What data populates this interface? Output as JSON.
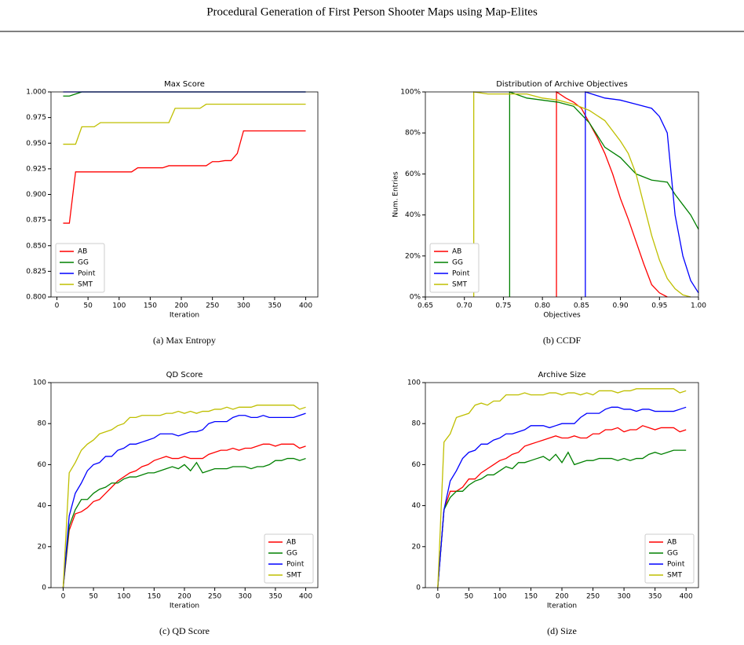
{
  "header": {
    "title": "Procedural Generation of First Person Shooter Maps using Map-Elites"
  },
  "chart_data": [
    {
      "type": "line",
      "title": "Max Score",
      "xlabel": "Iteration",
      "caption": "(a) Max Entropy",
      "legend": "lower left",
      "x": [
        10,
        20,
        30,
        40,
        50,
        60,
        70,
        80,
        90,
        100,
        110,
        120,
        130,
        140,
        150,
        160,
        170,
        180,
        190,
        200,
        210,
        220,
        230,
        240,
        250,
        260,
        270,
        280,
        290,
        300,
        310,
        320,
        330,
        340,
        350,
        360,
        370,
        380,
        390,
        400
      ],
      "xlim": [
        -9.5,
        419.5
      ],
      "xticks": [
        0,
        50,
        100,
        150,
        200,
        250,
        300,
        350,
        400
      ],
      "ylim": [
        0.8,
        1.0
      ],
      "yticks": [
        {
          "value": 0.8,
          "label": "0.800"
        },
        0.825,
        {
          "value": 0.85,
          "label": "0.850"
        },
        0.875,
        {
          "value": 0.9,
          "label": "0.900"
        },
        0.925,
        {
          "value": 0.95,
          "label": "0.950"
        },
        0.975,
        {
          "value": 1,
          "label": "1.000"
        }
      ],
      "series": [
        {
          "name": "AB",
          "color": "#ff0000",
          "values": [
            0.872,
            0.872,
            0.922,
            0.922,
            0.922,
            0.922,
            0.922,
            0.922,
            0.922,
            0.922,
            0.922,
            0.922,
            0.926,
            0.926,
            0.926,
            0.926,
            0.926,
            0.928,
            0.928,
            0.928,
            0.928,
            0.928,
            0.928,
            0.928,
            0.932,
            0.932,
            0.933,
            0.933,
            0.94,
            0.962,
            0.962,
            0.962,
            0.962,
            0.962,
            0.962,
            0.962,
            0.962,
            0.962,
            0.962,
            0.962
          ]
        },
        {
          "name": "GG",
          "color": "#008000",
          "values": [
            0.996,
            0.996,
            0.998,
            1,
            1,
            1,
            1,
            1,
            1,
            1,
            1,
            1,
            1,
            1,
            1,
            1,
            1,
            1,
            1,
            1,
            1,
            1,
            1,
            1,
            1,
            1,
            1,
            1,
            1,
            1,
            1,
            1,
            1,
            1,
            1,
            1,
            1,
            1,
            1,
            1
          ]
        },
        {
          "name": "Point",
          "color": "#0000ff",
          "values": [
            1,
            1,
            1,
            1,
            1,
            1,
            1,
            1,
            1,
            1,
            1,
            1,
            1,
            1,
            1,
            1,
            1,
            1,
            1,
            1,
            1,
            1,
            1,
            1,
            1,
            1,
            1,
            1,
            1,
            1,
            1,
            1,
            1,
            1,
            1,
            1,
            1,
            1,
            1,
            1
          ]
        },
        {
          "name": "SMT",
          "color": "#bfbf00",
          "values": [
            0.949,
            0.949,
            0.949,
            0.966,
            0.966,
            0.966,
            0.97,
            0.97,
            0.97,
            0.97,
            0.97,
            0.97,
            0.97,
            0.97,
            0.97,
            0.97,
            0.97,
            0.97,
            0.984,
            0.984,
            0.984,
            0.984,
            0.984,
            0.988,
            0.988,
            0.988,
            0.988,
            0.988,
            0.988,
            0.988,
            0.988,
            0.988,
            0.988,
            0.988,
            0.988,
            0.988,
            0.988,
            0.988,
            0.988,
            0.988
          ]
        }
      ]
    },
    {
      "type": "line",
      "title": "Distribution of Archive Objectives",
      "xlabel": "Objectives",
      "ylabel": "Num. Entries",
      "caption": "(b) CCDF",
      "legend": "lower left",
      "xlim": [
        0.65,
        1.0
      ],
      "xticks": [
        0.65,
        {
          "value": 0.7,
          "label": "0.70"
        },
        0.75,
        {
          "value": 0.8,
          "label": "0.80"
        },
        0.85,
        {
          "value": 0.9,
          "label": "0.90"
        },
        0.95,
        {
          "value": 1,
          "label": "1.00"
        }
      ],
      "ylim": [
        0,
        100
      ],
      "yticks": [
        {
          "value": 0,
          "label": "0%"
        },
        {
          "value": 20,
          "label": "20%"
        },
        {
          "value": 40,
          "label": "40%"
        },
        {
          "value": 60,
          "label": "60%"
        },
        {
          "value": 80,
          "label": "80%"
        },
        {
          "value": 100,
          "label": "100%"
        }
      ],
      "series": [
        {
          "name": "AB",
          "color": "#ff0000",
          "x": [
            0.818,
            0.818,
            0.83,
            0.84,
            0.85,
            0.86,
            0.87,
            0.88,
            0.89,
            0.9,
            0.91,
            0.92,
            0.93,
            0.94,
            0.95,
            0.96
          ],
          "values": [
            0,
            100,
            97,
            95,
            92,
            85,
            78,
            70,
            60,
            48,
            38,
            27,
            16,
            6,
            2,
            0
          ]
        },
        {
          "name": "GG",
          "color": "#008000",
          "x": [
            0.758,
            0.758,
            0.78,
            0.8,
            0.82,
            0.84,
            0.86,
            0.88,
            0.9,
            0.92,
            0.94,
            0.96,
            0.97,
            0.98,
            0.99,
            1.0
          ],
          "values": [
            0,
            100,
            97,
            96,
            95,
            93,
            85,
            73,
            68,
            60,
            57,
            56,
            50,
            45,
            40,
            33
          ]
        },
        {
          "name": "Point",
          "color": "#0000ff",
          "x": [
            0.855,
            0.855,
            0.88,
            0.9,
            0.92,
            0.94,
            0.95,
            0.96,
            0.965,
            0.97,
            0.975,
            0.98,
            0.99,
            1.0
          ],
          "values": [
            0,
            100,
            97,
            96,
            94,
            92,
            88,
            80,
            60,
            40,
            30,
            20,
            8,
            2
          ]
        },
        {
          "name": "SMT",
          "color": "#bfbf00",
          "x": [
            0.712,
            0.712,
            0.73,
            0.78,
            0.8,
            0.82,
            0.84,
            0.86,
            0.88,
            0.9,
            0.91,
            0.92,
            0.93,
            0.94,
            0.95,
            0.96,
            0.97,
            0.98,
            0.99
          ],
          "values": [
            0,
            100,
            99,
            99,
            97,
            96,
            94,
            91,
            86,
            76,
            70,
            60,
            45,
            30,
            18,
            9,
            4,
            1,
            0
          ]
        }
      ]
    },
    {
      "type": "line",
      "title": "QD Score",
      "xlabel": "Iteration",
      "caption": "(c) QD Score",
      "legend": "lower right",
      "x": [
        0,
        10,
        20,
        30,
        40,
        50,
        60,
        70,
        80,
        90,
        100,
        110,
        120,
        130,
        140,
        150,
        160,
        170,
        180,
        190,
        200,
        210,
        220,
        230,
        240,
        250,
        260,
        270,
        280,
        290,
        300,
        310,
        320,
        330,
        340,
        350,
        360,
        370,
        380,
        390,
        400
      ],
      "xlim": [
        -20,
        420
      ],
      "xticks": [
        0,
        50,
        100,
        150,
        200,
        250,
        300,
        350,
        400
      ],
      "ylim": [
        0,
        100
      ],
      "yticks": [
        0,
        20,
        40,
        60,
        80,
        100
      ],
      "series": [
        {
          "name": "AB",
          "color": "#ff0000",
          "values": [
            0,
            28,
            36,
            37,
            39,
            42,
            43,
            46,
            49,
            52,
            54,
            56,
            57,
            59,
            60,
            62,
            63,
            64,
            63,
            63,
            64,
            63,
            63,
            63,
            65,
            66,
            67,
            67,
            68,
            67,
            68,
            68,
            69,
            70,
            70,
            69,
            70,
            70,
            70,
            68,
            69
          ]
        },
        {
          "name": "GG",
          "color": "#008000",
          "values": [
            0,
            30,
            38,
            43,
            43,
            46,
            48,
            49,
            51,
            51,
            53,
            54,
            54,
            55,
            56,
            56,
            57,
            58,
            59,
            58,
            60,
            57,
            61,
            56,
            57,
            58,
            58,
            58,
            59,
            59,
            59,
            58,
            59,
            59,
            60,
            62,
            62,
            63,
            63,
            62,
            63
          ]
        },
        {
          "name": "Point",
          "color": "#0000ff",
          "values": [
            0,
            35,
            46,
            51,
            57,
            60,
            61,
            64,
            64,
            67,
            68,
            70,
            70,
            71,
            72,
            73,
            75,
            75,
            75,
            74,
            75,
            76,
            76,
            77,
            80,
            81,
            81,
            81,
            83,
            84,
            84,
            83,
            83,
            84,
            83,
            83,
            83,
            83,
            83,
            84,
            85
          ]
        },
        {
          "name": "SMT",
          "color": "#bfbf00",
          "values": [
            0,
            56,
            61,
            67,
            70,
            72,
            75,
            76,
            77,
            79,
            80,
            83,
            83,
            84,
            84,
            84,
            84,
            85,
            85,
            86,
            85,
            86,
            85,
            86,
            86,
            87,
            87,
            88,
            87,
            88,
            88,
            88,
            89,
            89,
            89,
            89,
            89,
            89,
            89,
            87,
            88
          ]
        }
      ]
    },
    {
      "type": "line",
      "title": "Archive Size",
      "xlabel": "Iteration",
      "caption": "(d) Size",
      "legend": "lower right",
      "x": [
        0,
        10,
        20,
        30,
        40,
        50,
        60,
        70,
        80,
        90,
        100,
        110,
        120,
        130,
        140,
        150,
        160,
        170,
        180,
        190,
        200,
        210,
        220,
        230,
        240,
        250,
        260,
        270,
        280,
        290,
        300,
        310,
        320,
        330,
        340,
        350,
        360,
        370,
        380,
        390,
        400
      ],
      "xlim": [
        -20,
        420
      ],
      "xticks": [
        0,
        50,
        100,
        150,
        200,
        250,
        300,
        350,
        400
      ],
      "ylim": [
        0,
        100
      ],
      "yticks": [
        0,
        20,
        40,
        60,
        80,
        100
      ],
      "series": [
        {
          "name": "AB",
          "color": "#ff0000",
          "values": [
            0,
            38,
            47,
            47,
            49,
            53,
            53,
            56,
            58,
            60,
            62,
            63,
            65,
            66,
            69,
            70,
            71,
            72,
            73,
            74,
            73,
            73,
            74,
            73,
            73,
            75,
            75,
            77,
            77,
            78,
            76,
            77,
            77,
            79,
            78,
            77,
            78,
            78,
            78,
            76,
            77
          ]
        },
        {
          "name": "GG",
          "color": "#008000",
          "values": [
            0,
            38,
            44,
            47,
            47,
            50,
            52,
            53,
            55,
            55,
            57,
            59,
            58,
            61,
            61,
            62,
            63,
            64,
            62,
            65,
            61,
            66,
            60,
            61,
            62,
            62,
            63,
            63,
            63,
            62,
            63,
            62,
            63,
            63,
            65,
            66,
            65,
            66,
            67,
            67,
            67
          ]
        },
        {
          "name": "Point",
          "color": "#0000ff",
          "values": [
            0,
            38,
            52,
            57,
            63,
            66,
            67,
            70,
            70,
            72,
            73,
            75,
            75,
            76,
            77,
            79,
            79,
            79,
            78,
            79,
            80,
            80,
            80,
            83,
            85,
            85,
            85,
            87,
            88,
            88,
            87,
            87,
            86,
            87,
            87,
            86,
            86,
            86,
            86,
            87,
            88
          ]
        },
        {
          "name": "SMT",
          "color": "#bfbf00",
          "values": [
            0,
            71,
            75,
            83,
            84,
            85,
            89,
            90,
            89,
            91,
            91,
            94,
            94,
            94,
            95,
            94,
            94,
            94,
            95,
            95,
            94,
            95,
            95,
            94,
            95,
            94,
            96,
            96,
            96,
            95,
            96,
            96,
            97,
            97,
            97,
            97,
            97,
            97,
            97,
            95,
            96
          ]
        }
      ]
    }
  ]
}
